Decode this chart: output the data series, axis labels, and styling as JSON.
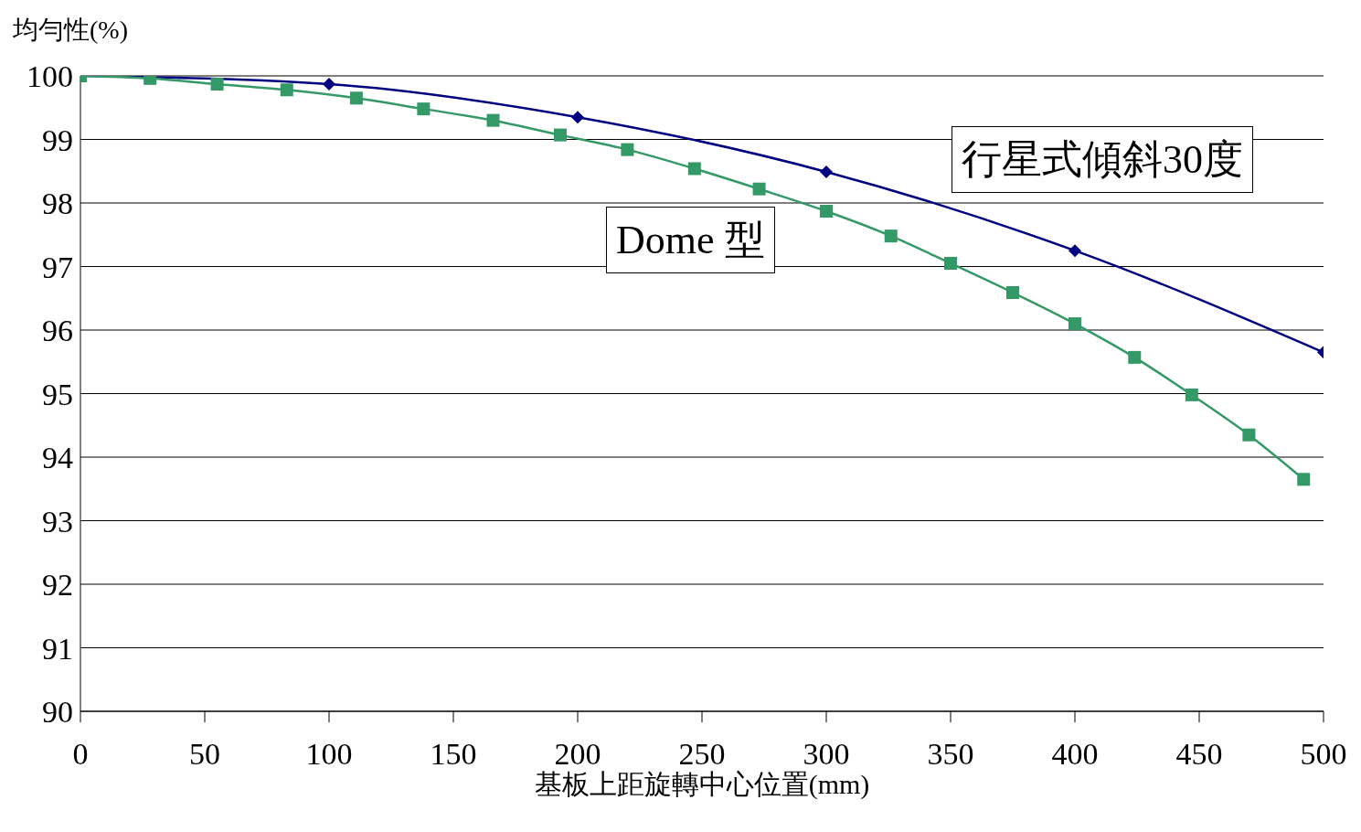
{
  "chart_data": {
    "type": "line",
    "ylabel": "均勻性(%)",
    "xlabel": "基板上距旋轉中心位置(mm)",
    "xlim": [
      0,
      500
    ],
    "xticks": [
      0,
      50,
      100,
      150,
      200,
      250,
      300,
      350,
      400,
      450,
      500
    ],
    "ylim": [
      90,
      100
    ],
    "yticks": [
      90,
      91,
      92,
      93,
      94,
      95,
      96,
      97,
      98,
      99,
      100
    ],
    "grid": "y",
    "legend": false,
    "series": [
      {
        "name": "行星式傾斜30度",
        "color": "#000080",
        "marker": "diamond",
        "x": [
          0,
          100,
          200,
          300,
          400,
          500
        ],
        "values": [
          100,
          99.87,
          99.35,
          98.49,
          97.25,
          95.65
        ]
      },
      {
        "name": "Dome 型",
        "color": "#339966",
        "marker": "square",
        "x": [
          0,
          28,
          55,
          83,
          111,
          138,
          166,
          193,
          220,
          247,
          273,
          300,
          326,
          350,
          375,
          400,
          424,
          447,
          470,
          492
        ],
        "values": [
          100,
          99.96,
          99.87,
          99.78,
          99.65,
          99.48,
          99.3,
          99.07,
          98.84,
          98.54,
          98.22,
          97.87,
          97.48,
          97.05,
          96.59,
          96.1,
          95.57,
          94.98,
          94.35,
          93.65
        ]
      }
    ]
  }
}
